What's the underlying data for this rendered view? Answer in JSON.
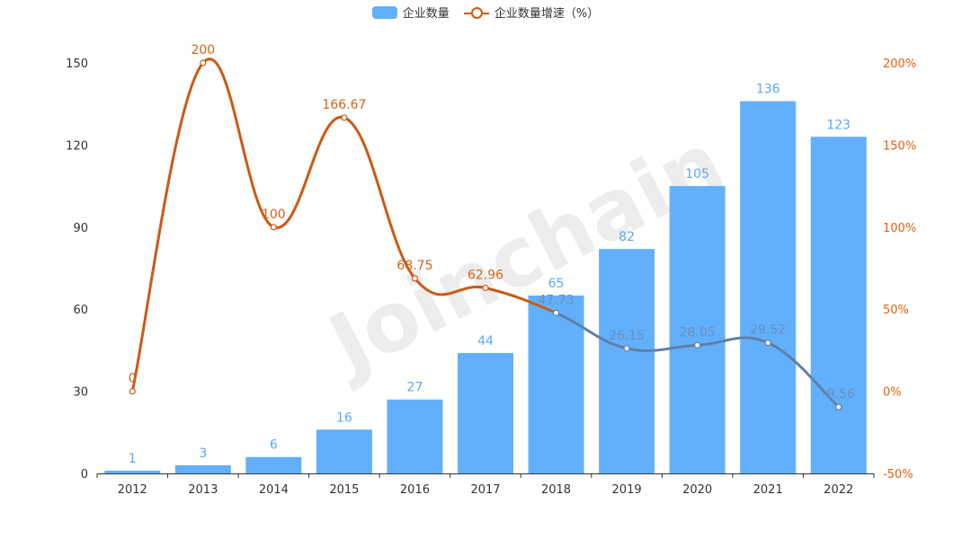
{
  "legend": {
    "bars_label": "企业数量",
    "line_label": "企业数量增速（%）"
  },
  "watermark": {
    "text": "Joinchain",
    "mark": "®"
  },
  "colors": {
    "bar": "#62b0fc",
    "bar_label": "#5aa9f5",
    "line": "#cc5a14",
    "line_label": "#d26317",
    "line_overlap": "#5f7fa8",
    "line_overlap_label": "#6a8fbf",
    "axis_text": "#333333",
    "right_axis_text": "#e0620e"
  },
  "chart_data": {
    "type": "bar",
    "categories": [
      "2012",
      "2013",
      "2014",
      "2015",
      "2016",
      "2017",
      "2018",
      "2019",
      "2020",
      "2021",
      "2022"
    ],
    "series": [
      {
        "name": "企业数量",
        "type": "bar",
        "axis": "left",
        "values": [
          1,
          3,
          6,
          16,
          27,
          44,
          65,
          82,
          105,
          136,
          123
        ],
        "labels": [
          "1",
          "3",
          "6",
          "16",
          "27",
          "44",
          "65",
          "82",
          "105",
          "136",
          "123"
        ]
      },
      {
        "name": "企业数量增速（%）",
        "type": "line",
        "axis": "right",
        "smooth": true,
        "values": [
          0,
          200,
          100,
          166.67,
          68.75,
          62.96,
          47.73,
          26.15,
          28.05,
          29.52,
          -9.56
        ],
        "labels": [
          "0",
          "200",
          "100",
          "166.67",
          "68.75",
          "62.96",
          "47.73",
          "26.15",
          "28.05",
          "29.52",
          "-9.56"
        ]
      }
    ],
    "y_left": {
      "min": 0,
      "max": 150,
      "ticks": [
        "0",
        "30",
        "60",
        "90",
        "120",
        "150"
      ]
    },
    "y_right": {
      "min": -50,
      "max": 200,
      "ticks": [
        "-50%",
        "0%",
        "50%",
        "100%",
        "150%",
        "200%"
      ]
    },
    "grid": false,
    "legend_position": "top-center"
  }
}
